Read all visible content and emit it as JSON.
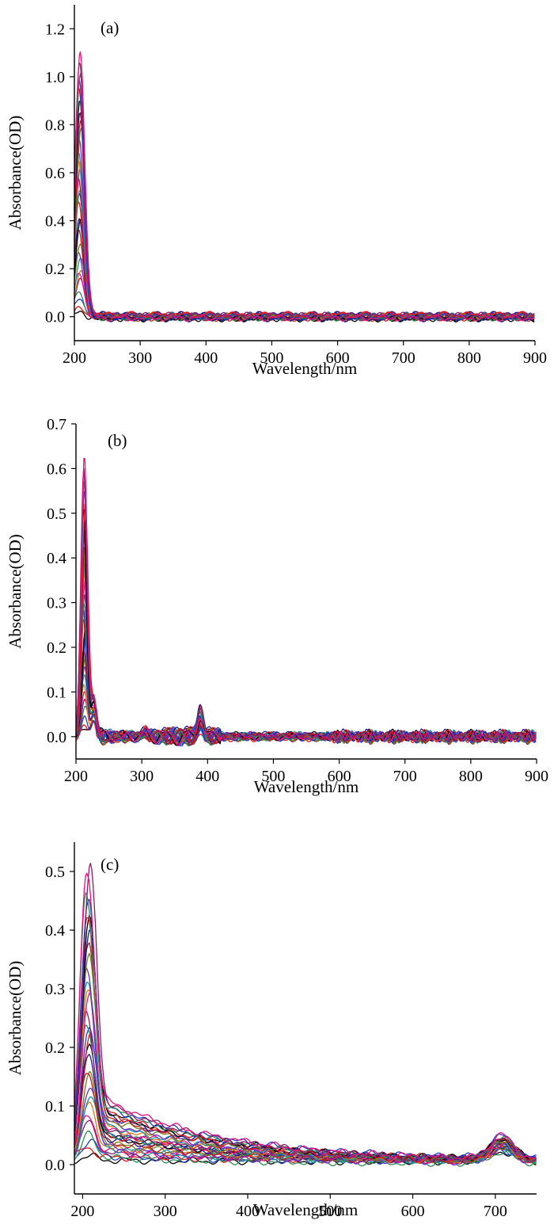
{
  "figure": {
    "background": "#ffffff",
    "axis_color": "#000000",
    "series_colors": [
      "#000000",
      "#e8111a",
      "#1f3fbf",
      "#2e8b57",
      "#8b1a6b",
      "#e8117f",
      "#d97a1a",
      "#1a8fa8",
      "#6a2ec9",
      "#7a7a1a",
      "#b31a1a",
      "#1a1a8b"
    ]
  },
  "chart_data": [
    {
      "type": "line",
      "panel_label": "(a)",
      "xlabel": "Wavelength/nm",
      "ylabel": "Absorbance(OD)",
      "xlim": [
        200,
        900
      ],
      "ylim": [
        -0.1,
        1.3
      ],
      "xticks": [
        200,
        300,
        400,
        500,
        600,
        700,
        800,
        900
      ],
      "yticks": [
        0.0,
        0.2,
        0.4,
        0.6,
        0.8,
        1.0,
        1.2
      ],
      "ytick_format": "1dp",
      "series_count": 30,
      "peak": {
        "x": 208,
        "y": 1.11,
        "width": 7
      },
      "secondary_peaks": [],
      "baseline": 0.0,
      "tail": {
        "amp": 0.02,
        "decay": 12
      }
    },
    {
      "type": "line",
      "panel_label": "(b)",
      "xlabel": "Wavelength/nm",
      "ylabel": "Absorbance(OD)",
      "xlim": [
        200,
        900
      ],
      "ylim": [
        -0.05,
        0.7
      ],
      "xticks": [
        200,
        300,
        400,
        500,
        600,
        700,
        800,
        900
      ],
      "yticks": [
        0.0,
        0.1,
        0.2,
        0.3,
        0.4,
        0.5,
        0.6,
        0.7
      ],
      "ytick_format": "1dp",
      "series_count": 30,
      "peak": {
        "x": 213,
        "y": 0.625,
        "width": 4.5
      },
      "secondary_peaks": [
        {
          "x": 227,
          "y": 0.09,
          "width": 4
        },
        {
          "x": 389,
          "y": 0.06,
          "width": 4
        },
        {
          "x": 305,
          "y": 0.015,
          "width": 3
        }
      ],
      "baseline": 0.0,
      "tail": {
        "amp": 0.0,
        "decay": 10
      }
    },
    {
      "type": "line",
      "panel_label": "(c)",
      "xlabel": "Wavelength/nm",
      "ylabel": "Absorbance(OD)",
      "xlim": [
        190,
        750
      ],
      "ylim": [
        -0.05,
        0.55
      ],
      "xticks": [
        200,
        300,
        400,
        500,
        600,
        700
      ],
      "yticks": [
        0.0,
        0.1,
        0.2,
        0.3,
        0.4,
        0.5
      ],
      "ytick_format": "1dp",
      "series_count": 30,
      "peak": {
        "x": 206,
        "y": 0.493,
        "width": 8
      },
      "secondary_peaks": [
        {
          "x": 708,
          "y": 0.04,
          "width": 14
        }
      ],
      "baseline": 0.005,
      "tail": {
        "amp": 0.12,
        "decay": 150
      }
    }
  ]
}
